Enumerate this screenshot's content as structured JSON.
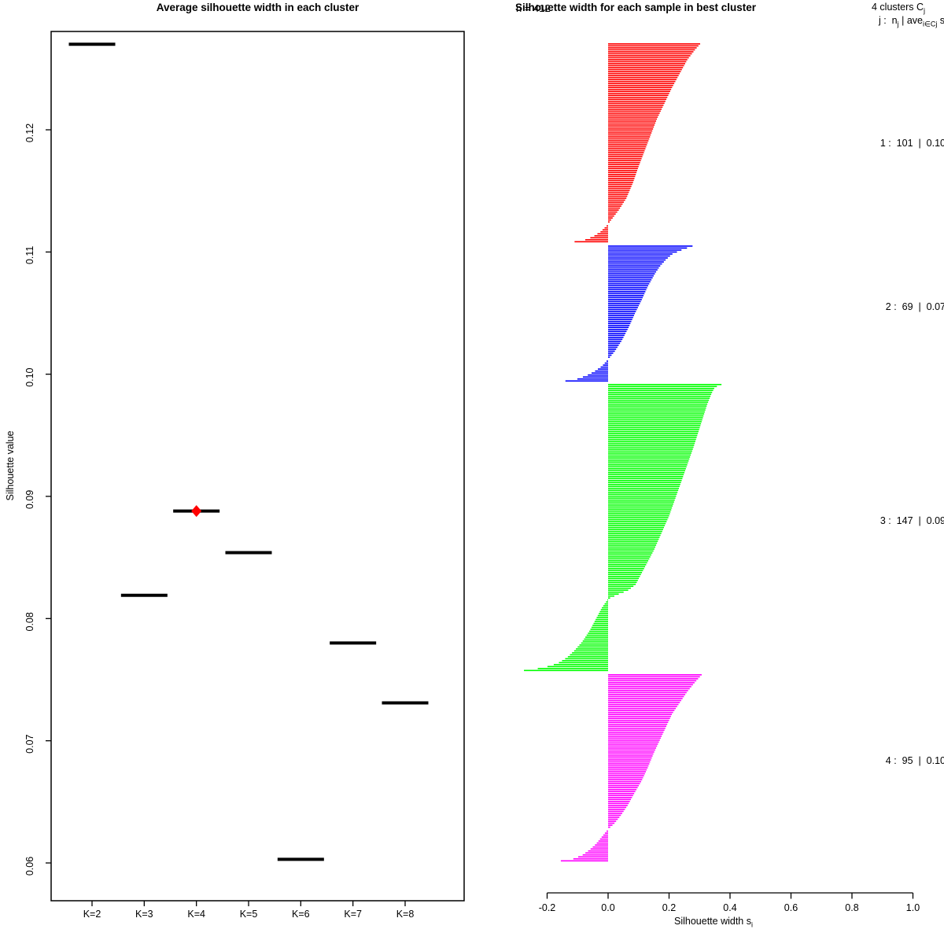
{
  "page": {
    "background": "#ffffff"
  },
  "chart_data": [
    {
      "type": "scatter",
      "panel": "left",
      "title": "Average silhouette width in each cluster",
      "xlabel": "",
      "ylabel": "Silhouette value",
      "categories": [
        "K=2",
        "K=3",
        "K=4",
        "K=5",
        "K=6",
        "K=7",
        "K=8"
      ],
      "values": [
        0.127,
        0.0819,
        0.0888,
        0.0854,
        0.0603,
        0.078,
        0.0731
      ],
      "marker": "horizontal-segment",
      "segment_color": "#000000",
      "best": {
        "category": "K=4",
        "index": 2,
        "value": 0.0888,
        "marker": "diamond",
        "color": "#ff0000"
      },
      "yticks": [
        "0.06",
        "0.07",
        "0.08",
        "0.09",
        "0.10",
        "0.11",
        "0.12"
      ],
      "ytick_values": [
        0.06,
        0.07,
        0.08,
        0.09,
        0.1,
        0.11,
        0.12
      ],
      "ylim": [
        0.057,
        0.128
      ],
      "grid": false,
      "box": true
    },
    {
      "type": "bar",
      "panel": "right",
      "orientation": "horizontal",
      "title": "Silhouette width for each sample in best cluster",
      "subtitle": "n = 412",
      "xlabel": {
        "text": "Silhouette width s",
        "sub": "i"
      },
      "xticks": [
        "-0.2",
        "0.0",
        "0.2",
        "0.4",
        "0.6",
        "0.8",
        "1.0"
      ],
      "xtick_values": [
        -0.2,
        0.0,
        0.2,
        0.4,
        0.6,
        0.8,
        1.0
      ],
      "xlim": [
        -0.3,
        1.02
      ],
      "grid": false,
      "legend": {
        "line1": {
          "text": "4 clusters C",
          "sub": "j"
        },
        "line2": {
          "p1": "j :  n",
          "s1": "j",
          "p2": " | ave",
          "s2": "i∈Cj",
          "p3": " s",
          "s3": "i"
        }
      },
      "clusters": [
        {
          "id": 1,
          "label": "1 :  101  |  0.10",
          "n": 101,
          "ave_width": 0.1,
          "color": "#ff0000",
          "min": -0.11,
          "max": 0.3,
          "profile": [
            [
              0,
              0.302
            ],
            [
              0.03,
              0.285
            ],
            [
              0.08,
              0.26
            ],
            [
              0.15,
              0.235
            ],
            [
              0.22,
              0.21
            ],
            [
              0.3,
              0.185
            ],
            [
              0.38,
              0.16
            ],
            [
              0.46,
              0.14
            ],
            [
              0.54,
              0.12
            ],
            [
              0.62,
              0.1
            ],
            [
              0.7,
              0.082
            ],
            [
              0.78,
              0.06
            ],
            [
              0.84,
              0.035
            ],
            [
              0.89,
              0.01
            ],
            [
              0.92,
              -0.005
            ],
            [
              0.95,
              -0.025
            ],
            [
              0.975,
              -0.05
            ],
            [
              0.99,
              -0.075
            ],
            [
              1,
              -0.11
            ]
          ]
        },
        {
          "id": 2,
          "label": "2 :  69  |  0.07",
          "n": 69,
          "ave_width": 0.07,
          "color": "#0000ff",
          "min": -0.14,
          "max": 0.28,
          "profile": [
            [
              0,
              0.277
            ],
            [
              0.03,
              0.24
            ],
            [
              0.06,
              0.21
            ],
            [
              0.1,
              0.19
            ],
            [
              0.15,
              0.17
            ],
            [
              0.2,
              0.155
            ],
            [
              0.3,
              0.13
            ],
            [
              0.4,
              0.11
            ],
            [
              0.5,
              0.088
            ],
            [
              0.6,
              0.068
            ],
            [
              0.7,
              0.045
            ],
            [
              0.78,
              0.022
            ],
            [
              0.84,
              0.0
            ],
            [
              0.89,
              -0.02
            ],
            [
              0.93,
              -0.045
            ],
            [
              0.96,
              -0.07
            ],
            [
              0.985,
              -0.1
            ],
            [
              1,
              -0.14
            ]
          ]
        },
        {
          "id": 3,
          "label": "3 :  147  |  0.09",
          "n": 147,
          "ave_width": 0.09,
          "color": "#00ff00",
          "min": -0.28,
          "max": 0.37,
          "profile": [
            [
              0,
              0.372
            ],
            [
              0.01,
              0.35
            ],
            [
              0.03,
              0.34
            ],
            [
              0.07,
              0.325
            ],
            [
              0.12,
              0.31
            ],
            [
              0.17,
              0.295
            ],
            [
              0.22,
              0.28
            ],
            [
              0.28,
              0.26
            ],
            [
              0.34,
              0.24
            ],
            [
              0.4,
              0.22
            ],
            [
              0.46,
              0.2
            ],
            [
              0.52,
              0.175
            ],
            [
              0.58,
              0.15
            ],
            [
              0.63,
              0.125
            ],
            [
              0.67,
              0.105
            ],
            [
              0.7,
              0.09
            ],
            [
              0.72,
              0.065
            ],
            [
              0.735,
              0.03
            ],
            [
              0.75,
              0.0
            ],
            [
              0.78,
              -0.02
            ],
            [
              0.82,
              -0.04
            ],
            [
              0.86,
              -0.06
            ],
            [
              0.9,
              -0.085
            ],
            [
              0.93,
              -0.11
            ],
            [
              0.955,
              -0.135
            ],
            [
              0.975,
              -0.165
            ],
            [
              0.99,
              -0.21
            ],
            [
              1,
              -0.276
            ]
          ]
        },
        {
          "id": 4,
          "label": "4 :  95  |  0.10",
          "n": 95,
          "ave_width": 0.1,
          "color": "#ff00ff",
          "min": -0.155,
          "max": 0.31,
          "profile": [
            [
              0,
              0.307
            ],
            [
              0.04,
              0.285
            ],
            [
              0.09,
              0.26
            ],
            [
              0.15,
              0.235
            ],
            [
              0.21,
              0.21
            ],
            [
              0.28,
              0.19
            ],
            [
              0.35,
              0.17
            ],
            [
              0.42,
              0.15
            ],
            [
              0.5,
              0.13
            ],
            [
              0.57,
              0.11
            ],
            [
              0.64,
              0.085
            ],
            [
              0.7,
              0.065
            ],
            [
              0.76,
              0.04
            ],
            [
              0.8,
              0.02
            ],
            [
              0.83,
              0.0
            ],
            [
              0.87,
              -0.02
            ],
            [
              0.91,
              -0.04
            ],
            [
              0.94,
              -0.06
            ],
            [
              0.97,
              -0.085
            ],
            [
              0.99,
              -0.115
            ],
            [
              1,
              -0.155
            ]
          ]
        }
      ]
    }
  ]
}
